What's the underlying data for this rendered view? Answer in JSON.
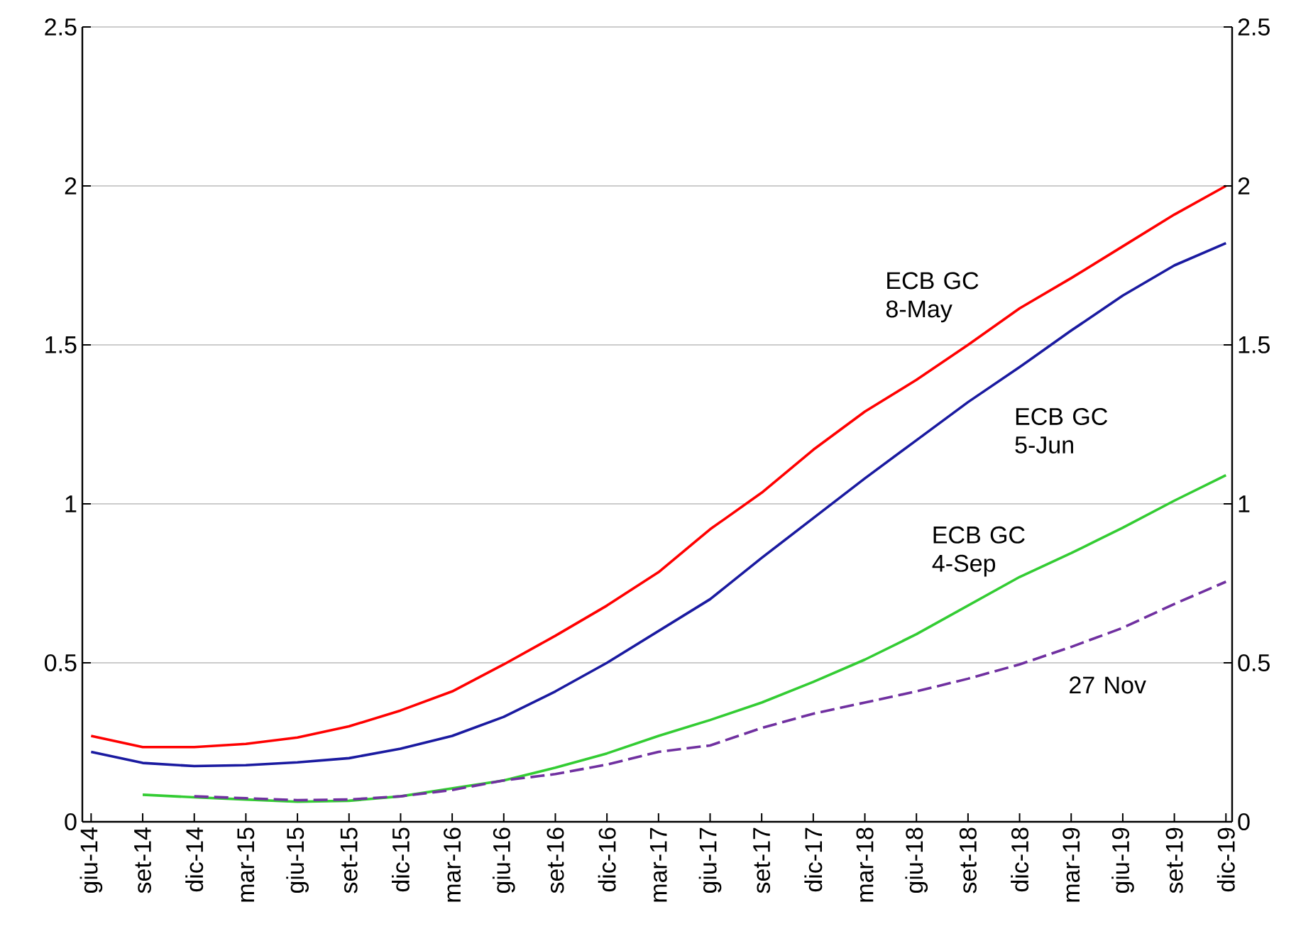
{
  "chart_data": {
    "type": "line",
    "categories": [
      "giu-14",
      "set-14",
      "dic-14",
      "mar-15",
      "giu-15",
      "set-15",
      "dic-15",
      "mar-16",
      "giu-16",
      "set-16",
      "dic-16",
      "mar-17",
      "giu-17",
      "set-17",
      "dic-17",
      "mar-18",
      "giu-18",
      "set-18",
      "dic-18",
      "mar-19",
      "giu-19",
      "set-19",
      "dic-19"
    ],
    "series": [
      {
        "name": "ECB GC 8-May",
        "color": "#ff0000",
        "line_style": "solid",
        "values": [
          0.27,
          0.235,
          0.235,
          0.245,
          0.265,
          0.3,
          0.35,
          0.41,
          0.495,
          0.585,
          0.68,
          0.785,
          0.92,
          1.035,
          1.17,
          1.29,
          1.39,
          1.5,
          1.615,
          1.71,
          1.81,
          1.91,
          2.0
        ]
      },
      {
        "name": "ECB GC 5-Jun",
        "color": "#1a1aa0",
        "line_style": "solid",
        "values": [
          0.22,
          0.185,
          0.175,
          0.178,
          0.187,
          0.2,
          0.23,
          0.27,
          0.33,
          0.41,
          0.5,
          0.6,
          0.7,
          0.83,
          0.955,
          1.08,
          1.2,
          1.32,
          1.43,
          1.545,
          1.655,
          1.75,
          1.82
        ]
      },
      {
        "name": "ECB GC 4-Sep",
        "color": "#33cc33",
        "line_style": "solid",
        "values": [
          null,
          0.085,
          0.077,
          0.07,
          0.063,
          0.066,
          0.08,
          0.105,
          0.13,
          0.17,
          0.215,
          0.27,
          0.32,
          0.375,
          0.44,
          0.51,
          0.59,
          0.68,
          0.77,
          0.845,
          0.925,
          1.01,
          1.09
        ]
      },
      {
        "name": "27 Nov",
        "color": "#7030a0",
        "line_style": "dashed",
        "values": [
          null,
          null,
          0.08,
          0.074,
          0.068,
          0.07,
          0.08,
          0.1,
          0.13,
          0.15,
          0.18,
          0.22,
          0.24,
          0.295,
          0.34,
          0.375,
          0.41,
          0.45,
          0.495,
          0.55,
          0.61,
          0.685,
          0.755
        ]
      }
    ],
    "ylim": [
      0,
      2.5
    ],
    "yticks": [
      0,
      0.5,
      1,
      1.5,
      2,
      2.5
    ],
    "y2lim": [
      0,
      2.5
    ],
    "y2ticks": [
      0,
      0.5,
      1,
      1.5,
      2,
      2.5
    ],
    "grid": "y",
    "legend": false,
    "marker": "none"
  }
}
